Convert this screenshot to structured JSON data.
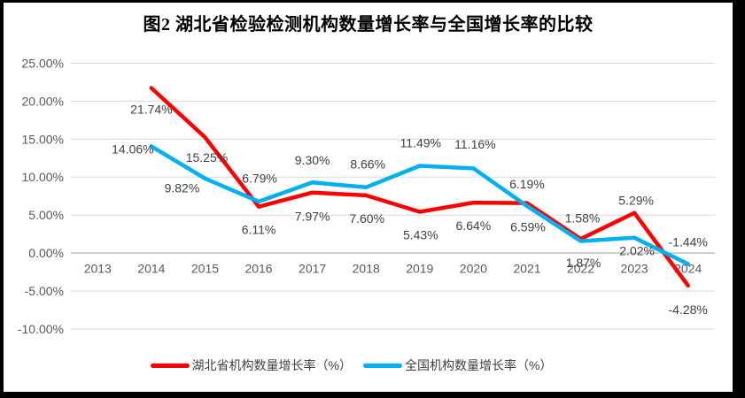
{
  "page": {
    "frame_border_color": "#000000",
    "panel_background": "#ffffff"
  },
  "chart_data": {
    "type": "line",
    "title": "图2 湖北省检验检测机构数量增长率与全国增长率的比较",
    "categories": [
      "2013",
      "2014",
      "2015",
      "2016",
      "2017",
      "2018",
      "2019",
      "2020",
      "2021",
      "2022",
      "2023",
      "2024"
    ],
    "series": [
      {
        "name": "湖北省机构数量增长率（%）",
        "color": "#FF0000",
        "values": [
          null,
          21.74,
          15.25,
          6.11,
          7.97,
          7.6,
          5.43,
          6.64,
          6.59,
          1.87,
          5.29,
          -4.28
        ]
      },
      {
        "name": "全国机构数量增长率（%）",
        "color": "#00B0F0",
        "values": [
          null,
          14.06,
          9.82,
          6.79,
          9.3,
          8.66,
          11.49,
          11.16,
          6.19,
          1.58,
          2.02,
          -1.44
        ]
      }
    ],
    "ylim": [
      -10,
      25
    ],
    "ytick_step": 5,
    "ytick_format": "0.00%",
    "grid": true,
    "legend_position": "bottom",
    "xlabel": "",
    "ylabel": "",
    "label_offsets": [
      [
        null,
        [
          0,
          24
        ],
        [
          2,
          23
        ],
        [
          0,
          26
        ],
        [
          0,
          27
        ],
        [
          1,
          26
        ],
        [
          1,
          26
        ],
        [
          0,
          26
        ],
        [
          1,
          27
        ],
        [
          3,
          27
        ],
        [
          2,
          -14
        ],
        [
          0,
          27
        ]
      ],
      [
        null,
        [
          -21,
          3
        ],
        [
          -26,
          11
        ],
        [
          1,
          -26
        ],
        [
          0,
          -25
        ],
        [
          2,
          -26
        ],
        [
          1,
          -26
        ],
        [
          2,
          -27
        ],
        [
          0,
          -25
        ],
        [
          2,
          -26
        ],
        [
          3,
          15
        ],
        [
          0,
          -25
        ]
      ]
    ],
    "colors": {
      "axis_text": "#595959",
      "data_label_text": "#404040",
      "gridline": "#D9D9D9",
      "zero_axis": "#BFBFBF"
    }
  }
}
